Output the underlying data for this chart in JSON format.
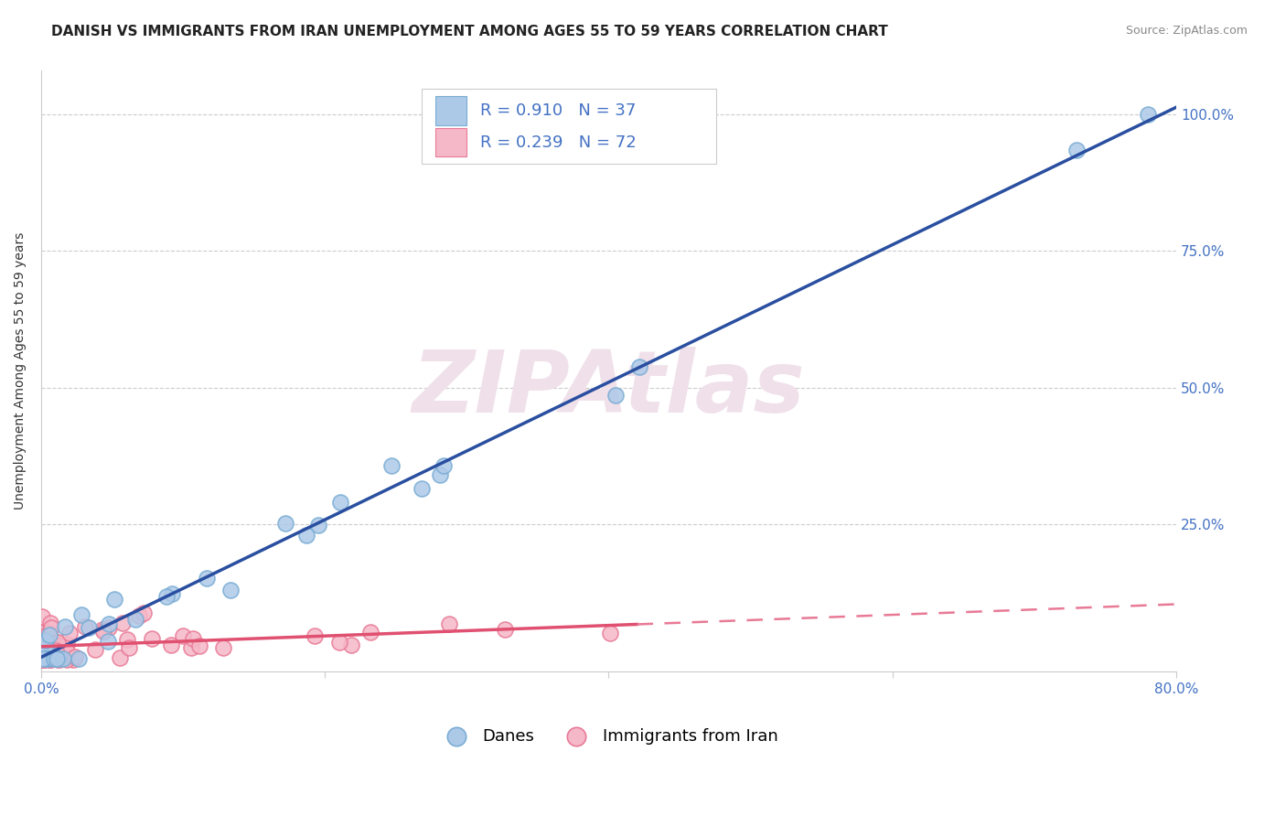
{
  "title": "DANISH VS IMMIGRANTS FROM IRAN UNEMPLOYMENT AMONG AGES 55 TO 59 YEARS CORRELATION CHART",
  "source": "Source: ZipAtlas.com",
  "ylabel": "Unemployment Among Ages 55 to 59 years",
  "xlim": [
    0.0,
    0.8
  ],
  "ylim": [
    -0.02,
    1.08
  ],
  "xticks": [
    0.0,
    0.2,
    0.4,
    0.6,
    0.8
  ],
  "xtick_labels_show": [
    "0.0%",
    "",
    "",
    "",
    "80.0%"
  ],
  "ytick_positions": [
    0.25,
    0.5,
    0.75,
    1.0
  ],
  "ytick_labels": [
    "25.0%",
    "50.0%",
    "75.0%",
    "100.0%"
  ],
  "background_color": "#ffffff",
  "danes_color": "#adc9e8",
  "danes_edge_color": "#7aadd4",
  "iran_color": "#f5b8c8",
  "iran_edge_color": "#e87a96",
  "danes_R": 0.91,
  "danes_N": 37,
  "iran_R": 0.239,
  "iran_N": 72,
  "grid_color": "#cccccc",
  "trend_blue_color": "#2a4fa0",
  "trend_pink_solid_color": "#e05070",
  "trend_pink_dash_color": "#e87a96",
  "title_fontsize": 11,
  "axis_label_fontsize": 10,
  "tick_fontsize": 11,
  "r_n_color": "#4472c4",
  "watermark_color": "#f0e0ea",
  "watermark_fontsize": 68
}
